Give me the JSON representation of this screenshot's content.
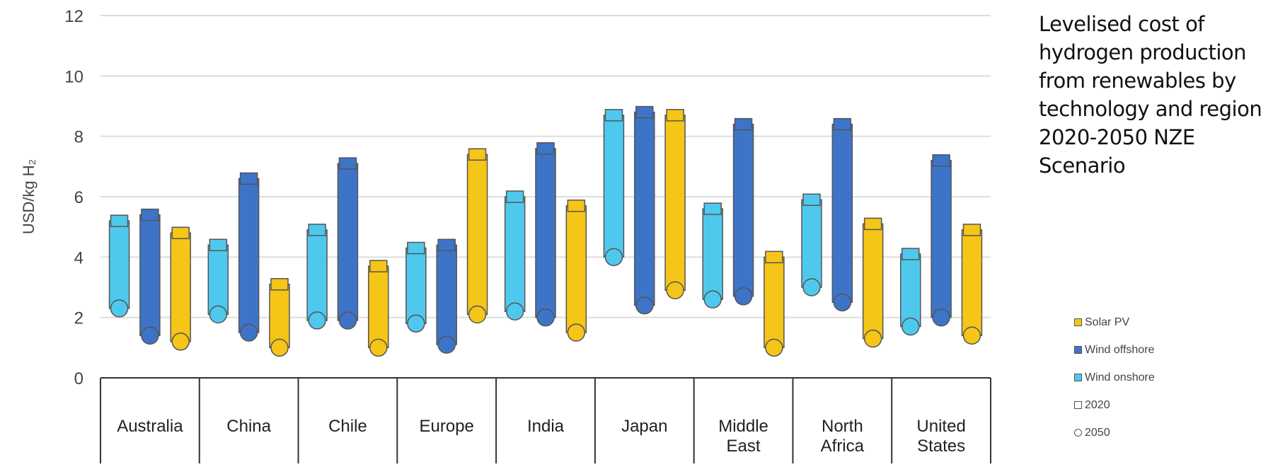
{
  "side_title": "Levelised cost of hydrogen production from renewables by technology and region 2020-2050 NZE Scenario",
  "colors": {
    "solar_pv": "#f5c518",
    "wind_offshore": "#3d74c8",
    "wind_onshore": "#4fc8ee",
    "grid": "#dddddd",
    "axis": "#333333"
  },
  "legend": {
    "items": [
      {
        "label": "Solar PV",
        "kind": "swatch",
        "color": "#f5c518"
      },
      {
        "label": "Wind offshore",
        "kind": "swatch",
        "color": "#3d74c8"
      },
      {
        "label": "Wind onshore",
        "kind": "swatch",
        "color": "#4fc8ee"
      },
      {
        "label": "2020",
        "kind": "swatch",
        "color": "#ffffff"
      },
      {
        "label": "2050",
        "kind": "circle",
        "color": "#ffffff"
      }
    ]
  },
  "chart_data": {
    "type": "range-bar",
    "title": "",
    "ylabel": "USD/kg H₂",
    "ylim": [
      0,
      12
    ],
    "yticks": [
      0,
      2,
      4,
      6,
      8,
      10,
      12
    ],
    "grid": true,
    "categories": [
      "Australia",
      "China",
      "Chile",
      "Europe",
      "India",
      "Japan",
      "Middle East",
      "North Africa",
      "United States"
    ],
    "series": [
      {
        "name": "Wind onshore",
        "key": "wind_onshore",
        "values_2020": [
          5.2,
          4.4,
          4.9,
          4.3,
          6.0,
          8.7,
          5.6,
          5.9,
          4.1
        ],
        "values_2050": [
          2.3,
          2.1,
          1.9,
          1.8,
          2.2,
          4.0,
          2.6,
          3.0,
          1.7
        ]
      },
      {
        "name": "Wind offshore",
        "key": "wind_offshore",
        "values_2020": [
          5.4,
          6.6,
          7.1,
          4.4,
          7.6,
          8.8,
          8.4,
          8.4,
          7.2
        ],
        "values_2050": [
          1.4,
          1.5,
          1.9,
          1.1,
          2.0,
          2.4,
          2.7,
          2.5,
          2.0
        ]
      },
      {
        "name": "Solar PV",
        "key": "solar_pv",
        "values_2020": [
          4.8,
          3.1,
          null,
          7.4,
          5.7,
          8.7,
          4.0,
          5.1,
          4.9
        ],
        "values_2050": [
          1.2,
          1.0,
          null,
          2.1,
          1.5,
          2.9,
          1.0,
          1.3,
          1.4
        ]
      }
    ],
    "chile_solar": {
      "value_2020": 3.7,
      "value_2050": 1.0
    }
  }
}
